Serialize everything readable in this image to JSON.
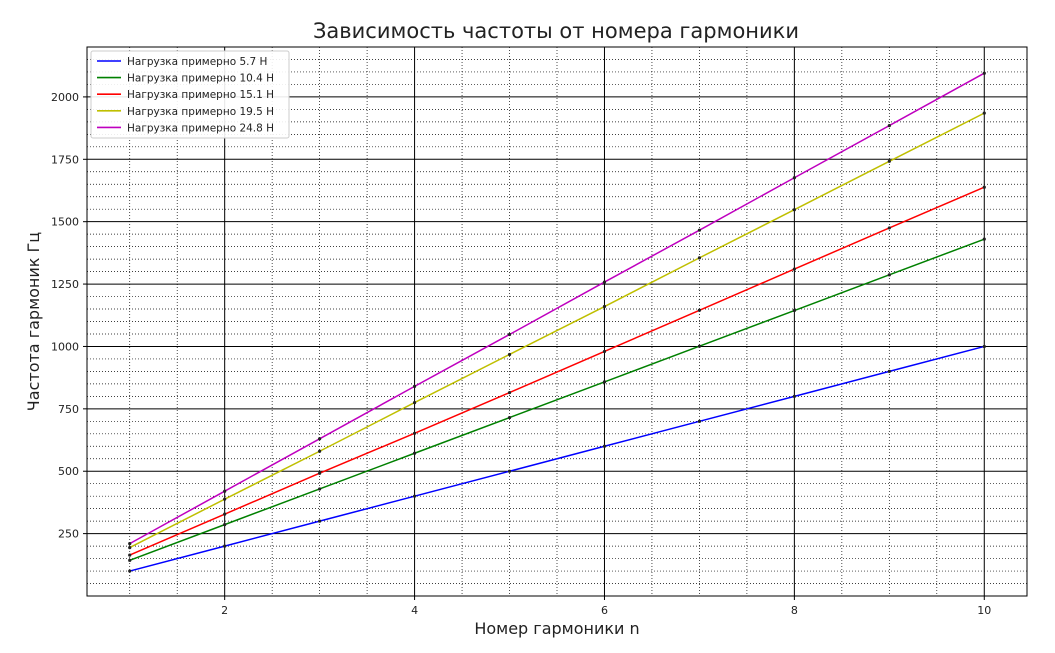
{
  "chart_data": {
    "type": "line",
    "title": "Зависимость частоты от номера гармоники",
    "xlabel": "Номер гармоники n",
    "ylabel": "Частота гармоник Гц",
    "xlim": [
      0.55,
      10.45
    ],
    "ylim": [
      0,
      2200
    ],
    "x_ticks": [
      2,
      4,
      6,
      8,
      10
    ],
    "y_ticks": [
      250,
      500,
      750,
      1000,
      1250,
      1500,
      1750,
      2000
    ],
    "grid": "major solid, minor dotted",
    "legend_position": "upper left",
    "x": [
      1,
      2,
      3,
      4,
      5,
      6,
      7,
      8,
      9,
      10
    ],
    "series": [
      {
        "name": "Нагрузка примерно 5.7 Н",
        "color": "#0000ff",
        "values": [
          100,
          200,
          300,
          400,
          500,
          600,
          700,
          800,
          900,
          1000
        ]
      },
      {
        "name": "Нагрузка примерно 10.4 Н",
        "color": "#008000",
        "values": [
          143,
          286,
          429,
          572,
          715,
          858,
          1001,
          1144,
          1287,
          1430
        ]
      },
      {
        "name": "Нагрузка примерно 15.1 Н",
        "color": "#ff0000",
        "values": [
          164,
          328,
          492,
          652,
          815,
          980,
          1145,
          1310,
          1475,
          1638
        ]
      },
      {
        "name": "Нагрузка примерно 19.5 Н",
        "color": "#bfbf00",
        "values": [
          194,
          388,
          580,
          775,
          968,
          1160,
          1355,
          1548,
          1742,
          1935
        ]
      },
      {
        "name": "Нагрузка примерно 24.8 Н",
        "color": "#bf00bf",
        "values": [
          210,
          420,
          630,
          840,
          1048,
          1258,
          1466,
          1676,
          1885,
          2095
        ]
      }
    ]
  }
}
